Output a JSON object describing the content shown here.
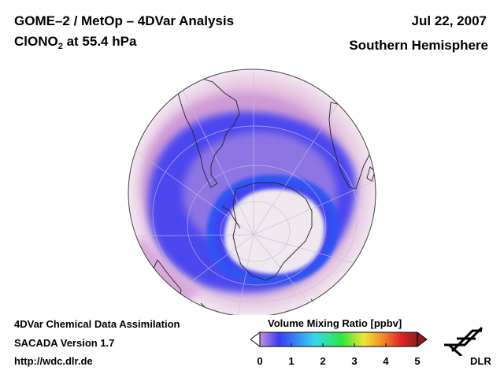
{
  "header": {
    "title_line1": "GOME–2 / MetOp – 4DVar Analysis",
    "species_main": "ClONO",
    "species_subscript": "2",
    "species_level": " at 55.4 hPa",
    "date": "Jul 22, 2007",
    "region": "Southern Hemisphere"
  },
  "footer": {
    "line1": "4DVar Chemical Data Assimilation",
    "line2": "SACADA Version 1.7",
    "line3": "http://wdc.dlr.de"
  },
  "colorbar": {
    "title": "Volume Mixing Ratio [ppbv]",
    "ticks": [
      "0",
      "1",
      "2",
      "3",
      "4",
      "5"
    ],
    "tick_values": [
      0,
      1,
      2,
      3,
      4,
      5
    ],
    "range": [
      0,
      5
    ],
    "colors": {
      "under": "#ffffff",
      "low": "#c792d8",
      "mid_low": "#3a3cf2",
      "mid": "#35d6f0",
      "green": "#2ee83a",
      "yellow": "#f2e43a",
      "orange": "#f08a2a",
      "red": "#e02222",
      "high": "#8a1f1f"
    }
  },
  "logo": {
    "text": "DLR",
    "icon": "dlr-logo-icon"
  },
  "map": {
    "projection": "orthographic",
    "hemisphere": "south",
    "field_colors": {
      "background": "#e9cfe4",
      "pink": "#d7a7da",
      "vortex_ring": "#3f3cf0",
      "vortex_edge": "#2f6bf0",
      "polar_core": "#efe8ee"
    }
  }
}
